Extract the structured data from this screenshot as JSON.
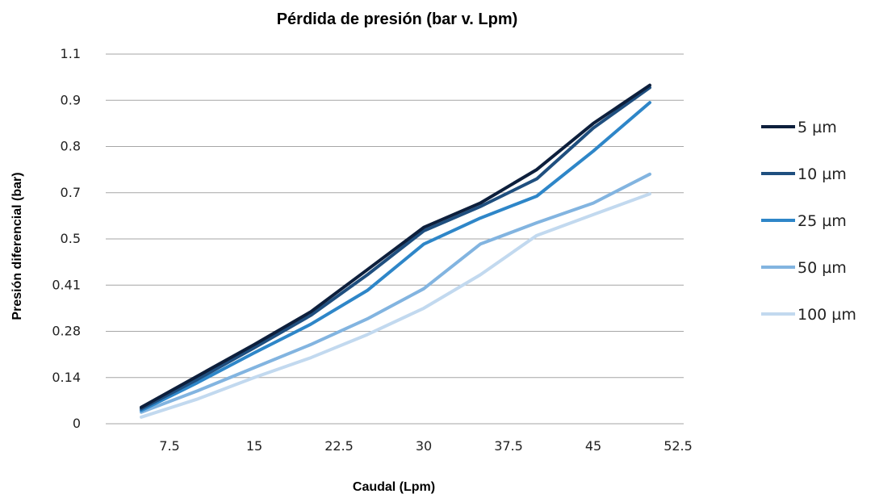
{
  "chart_data": {
    "type": "line",
    "title": "Pérdida de presión (bar v. Lpm)",
    "xlabel": "Caudal (Lpm)",
    "ylabel": "Presión diferencial (bar)",
    "x_ticks": [
      "7.5",
      "15",
      "22.5",
      "30",
      "37.5",
      "45",
      "52.5"
    ],
    "y_ticks": [
      "0",
      "0.14",
      "0.28",
      "0.41",
      "0.5",
      "0.7",
      "0.8",
      "0.9",
      "1.1"
    ],
    "grid": "horizontal",
    "legend": "right",
    "x": [
      5,
      10,
      15,
      20,
      25,
      30,
      35,
      40,
      45,
      50
    ],
    "series": [
      {
        "name": "5 µm",
        "color": "#0d1f3c",
        "values": [
          0.05,
          0.145,
          0.24,
          0.335,
          0.44,
          0.55,
          0.655,
          0.75,
          0.85,
          0.965
        ]
      },
      {
        "name": "10 µm",
        "color": "#1f4f7f",
        "values": [
          0.045,
          0.135,
          0.23,
          0.325,
          0.43,
          0.535,
          0.64,
          0.73,
          0.84,
          0.955
        ]
      },
      {
        "name": "25 µm",
        "color": "#2e86c8",
        "values": [
          0.04,
          0.125,
          0.215,
          0.3,
          0.395,
          0.49,
          0.59,
          0.685,
          0.79,
          0.895
        ]
      },
      {
        "name": "50 µm",
        "color": "#82b4e0",
        "values": [
          0.035,
          0.1,
          0.17,
          0.24,
          0.315,
          0.4,
          0.49,
          0.57,
          0.655,
          0.74
        ]
      },
      {
        "name": "100 µm",
        "color": "#c2d9ef",
        "values": [
          0.02,
          0.075,
          0.14,
          0.2,
          0.27,
          0.345,
          0.43,
          0.515,
          0.605,
          0.695
        ]
      }
    ]
  }
}
